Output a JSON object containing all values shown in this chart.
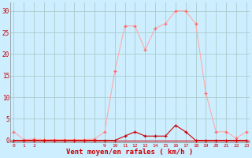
{
  "x": [
    0,
    1,
    2,
    3,
    4,
    5,
    6,
    7,
    8,
    9,
    10,
    11,
    12,
    13,
    14,
    15,
    16,
    17,
    18,
    19,
    20,
    21,
    22,
    23
  ],
  "rafales": [
    2,
    0.2,
    0.3,
    0.2,
    0.2,
    0.2,
    0.2,
    0.2,
    0.3,
    2,
    16,
    26.5,
    26.5,
    21,
    26,
    27,
    30,
    30,
    27,
    11,
    2,
    2,
    0.5,
    2
  ],
  "moyen": [
    0,
    0,
    0,
    0,
    0,
    0,
    0,
    0,
    0,
    0,
    0,
    1,
    2,
    1,
    1,
    1,
    3.5,
    2,
    0,
    0,
    0,
    0,
    0,
    0
  ],
  "bg_color": "#cceeff",
  "grid_color": "#aacccc",
  "line_color_rafales": "#ffaaaa",
  "line_color_moyen": "#cc0000",
  "marker_color_rafales": "#ff6666",
  "marker_color_moyen": "#cc0000",
  "xlabel": "Vent moyen/en rafales ( km/h )",
  "xlabel_color": "#cc0000",
  "tick_color": "#cc0000",
  "spine_color": "#888888",
  "yticks": [
    0,
    5,
    10,
    15,
    20,
    25,
    30
  ],
  "xtick_show": [
    0,
    1,
    2,
    9,
    10,
    11,
    12,
    13,
    14,
    15,
    16,
    17,
    18,
    19,
    20,
    21,
    22,
    23
  ],
  "ylim": [
    -0.5,
    32
  ],
  "xlim": [
    -0.3,
    23.3
  ]
}
